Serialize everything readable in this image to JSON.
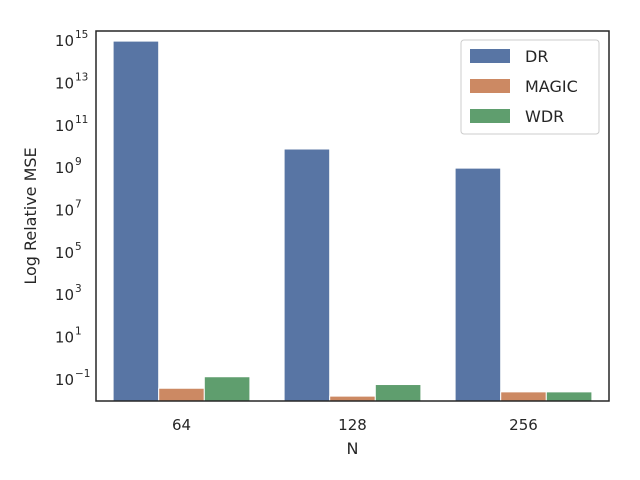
{
  "chart_data": {
    "type": "bar",
    "title": "",
    "xlabel": "N",
    "ylabel": "Log Relative MSE",
    "yscale": "log",
    "ylim": [
      0.01,
      3000000000000000.0
    ],
    "y_ticks": [
      {
        "value": 0.1,
        "base": "10",
        "exp": "−1"
      },
      {
        "value": 10,
        "base": "10",
        "exp": "1"
      },
      {
        "value": 1000,
        "base": "10",
        "exp": "3"
      },
      {
        "value": 100000,
        "base": "10",
        "exp": "5"
      },
      {
        "value": 10000000,
        "base": "10",
        "exp": "7"
      },
      {
        "value": 1000000000,
        "base": "10",
        "exp": "9"
      },
      {
        "value": 100000000000,
        "base": "10",
        "exp": "11"
      },
      {
        "value": 10000000000000,
        "base": "10",
        "exp": "13"
      },
      {
        "value": 1000000000000000,
        "base": "10",
        "exp": "15"
      }
    ],
    "categories": [
      "64",
      "128",
      "256"
    ],
    "series": [
      {
        "name": "DR",
        "color": "#5875a4",
        "values": [
          1000000000000000.0,
          8000000000.0,
          1000000000.0
        ]
      },
      {
        "name": "MAGIC",
        "color": "#cc8963",
        "values": [
          0.04,
          0.017,
          0.027
        ]
      },
      {
        "name": "WDR",
        "color": "#5f9e6e",
        "values": [
          0.14,
          0.06,
          0.027
        ]
      }
    ],
    "legend": "top-right",
    "grid": false
  }
}
